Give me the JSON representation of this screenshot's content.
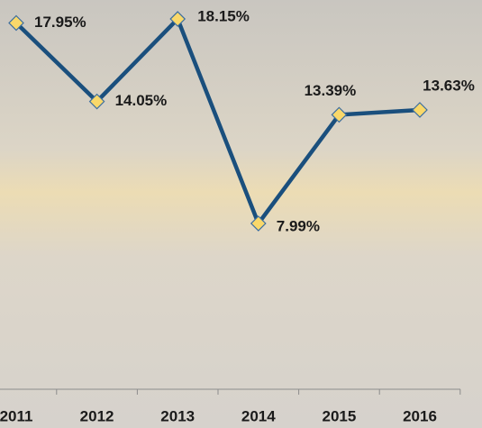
{
  "chart_data": {
    "type": "line",
    "categories": [
      "2011",
      "2012",
      "2013",
      "2014",
      "2015",
      "2016"
    ],
    "series": [
      {
        "color": "#1a4f7d",
        "values": [
          17.95,
          14.05,
          18.15,
          7.99,
          13.39,
          13.63
        ],
        "value_labels": [
          "17.95%",
          "14.05%",
          "18.15%",
          "7.99%",
          "13.39%",
          "13.63%"
        ]
      }
    ]
  }
}
